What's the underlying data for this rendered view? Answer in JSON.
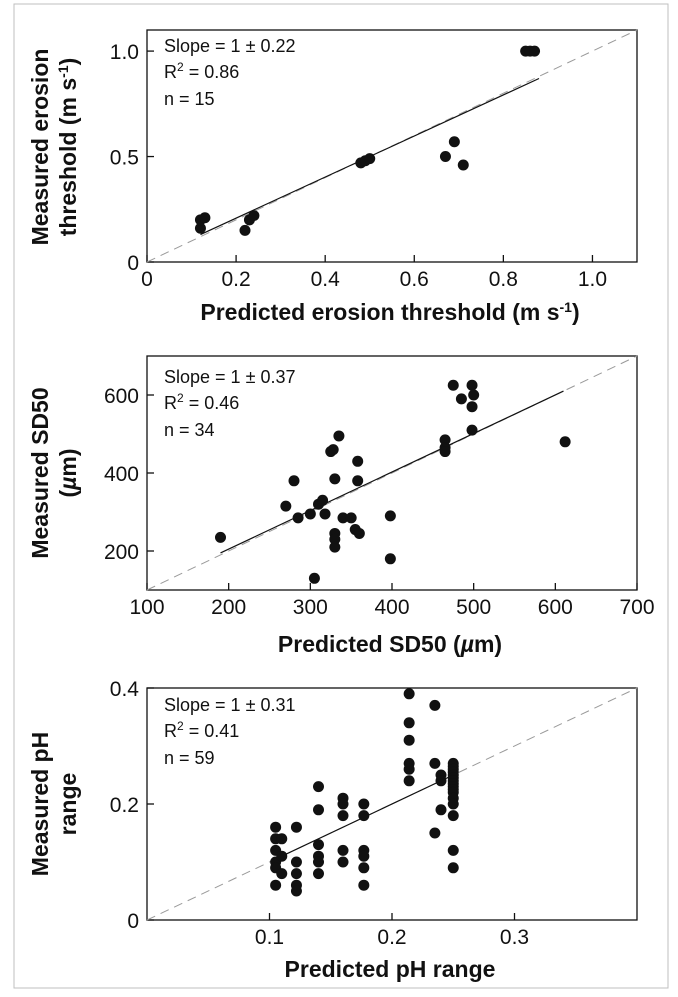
{
  "chart_data": [
    {
      "type": "scatter",
      "xlabel": "Predicted erosion threshold (m s-1)",
      "ylabel": "Measured erosion threshold (m s-1)",
      "xlim": [
        0,
        1.1
      ],
      "ylim": [
        0,
        1.1
      ],
      "x_ticks": [
        0,
        0.2,
        0.4,
        0.6,
        0.8,
        1.0
      ],
      "x_tick_labels": [
        "0",
        "0.2",
        "0.4",
        "0.6",
        "0.8",
        "1.0"
      ],
      "y_ticks": [
        0,
        0.5,
        1.0
      ],
      "y_tick_labels": [
        "0",
        "0.5",
        "1.0"
      ],
      "stats": {
        "slope": "Slope = 1 ± 0.22",
        "r2_prefix": "R",
        "r2_value": " = 0.86",
        "n": "n = 15"
      },
      "fit_line": [
        [
          0.12,
          0.13
        ],
        [
          0.88,
          0.87
        ]
      ],
      "identity_line": true,
      "points": [
        [
          0.12,
          0.16
        ],
        [
          0.12,
          0.2
        ],
        [
          0.13,
          0.21
        ],
        [
          0.22,
          0.15
        ],
        [
          0.23,
          0.2
        ],
        [
          0.24,
          0.22
        ],
        [
          0.48,
          0.47
        ],
        [
          0.49,
          0.48
        ],
        [
          0.5,
          0.49
        ],
        [
          0.67,
          0.5
        ],
        [
          0.69,
          0.57
        ],
        [
          0.71,
          0.46
        ],
        [
          0.85,
          1.0
        ],
        [
          0.86,
          1.0
        ],
        [
          0.87,
          1.0
        ]
      ]
    },
    {
      "type": "scatter",
      "xlabel": "Predicted SD50 (µm)",
      "ylabel": "Measured SD50 (µm)",
      "xlim": [
        100,
        700
      ],
      "ylim": [
        100,
        700
      ],
      "x_ticks": [
        100,
        200,
        300,
        400,
        500,
        600,
        700
      ],
      "x_tick_labels": [
        "100",
        "200",
        "300",
        "400",
        "500",
        "600",
        "700"
      ],
      "y_ticks": [
        200,
        400,
        600
      ],
      "y_tick_labels": [
        "200",
        "400",
        "600"
      ],
      "stats": {
        "slope": "Slope = 1 ± 0.37",
        "r2_prefix": "R",
        "r2_value": " = 0.46",
        "n": "n = 34"
      },
      "fit_line": [
        [
          190,
          195
        ],
        [
          610,
          610
        ]
      ],
      "identity_line": true,
      "points": [
        [
          190,
          235
        ],
        [
          270,
          315
        ],
        [
          280,
          380
        ],
        [
          285,
          285
        ],
        [
          300,
          295
        ],
        [
          305,
          130
        ],
        [
          310,
          320
        ],
        [
          315,
          330
        ],
        [
          318,
          295
        ],
        [
          325,
          455
        ],
        [
          328,
          460
        ],
        [
          330,
          385
        ],
        [
          330,
          245
        ],
        [
          330,
          230
        ],
        [
          330,
          210
        ],
        [
          335,
          495
        ],
        [
          340,
          285
        ],
        [
          350,
          285
        ],
        [
          355,
          255
        ],
        [
          358,
          430
        ],
        [
          358,
          380
        ],
        [
          360,
          245
        ],
        [
          398,
          290
        ],
        [
          398,
          180
        ],
        [
          465,
          485
        ],
        [
          465,
          465
        ],
        [
          465,
          455
        ],
        [
          475,
          625
        ],
        [
          485,
          590
        ],
        [
          498,
          625
        ],
        [
          498,
          570
        ],
        [
          498,
          510
        ],
        [
          500,
          600
        ],
        [
          612,
          480
        ]
      ]
    },
    {
      "type": "scatter",
      "xlabel": "Predicted pH range",
      "ylabel": "Measured pH range",
      "xlim": [
        0,
        0.4
      ],
      "ylim": [
        0,
        0.4
      ],
      "x_ticks": [
        0.1,
        0.2,
        0.3
      ],
      "x_tick_labels": [
        "0.1",
        "0.2",
        "0.3"
      ],
      "y_ticks": [
        0,
        0.2,
        0.4
      ],
      "y_tick_labels": [
        "0",
        "0.2",
        "0.4"
      ],
      "stats": {
        "slope": "Slope = 1 ± 0.31",
        "r2_prefix": "R",
        "r2_value": " = 0.41",
        "n": "n = 59"
      },
      "fit_line": [
        [
          0.105,
          0.105
        ],
        [
          0.25,
          0.25
        ]
      ],
      "identity_line": true,
      "points": [
        [
          0.105,
          0.16
        ],
        [
          0.105,
          0.14
        ],
        [
          0.105,
          0.12
        ],
        [
          0.105,
          0.1
        ],
        [
          0.105,
          0.09
        ],
        [
          0.105,
          0.06
        ],
        [
          0.11,
          0.11
        ],
        [
          0.11,
          0.14
        ],
        [
          0.11,
          0.08
        ],
        [
          0.122,
          0.16
        ],
        [
          0.122,
          0.1
        ],
        [
          0.122,
          0.08
        ],
        [
          0.122,
          0.06
        ],
        [
          0.122,
          0.05
        ],
        [
          0.14,
          0.23
        ],
        [
          0.14,
          0.19
        ],
        [
          0.14,
          0.13
        ],
        [
          0.14,
          0.11
        ],
        [
          0.14,
          0.1
        ],
        [
          0.14,
          0.08
        ],
        [
          0.16,
          0.21
        ],
        [
          0.16,
          0.2
        ],
        [
          0.16,
          0.18
        ],
        [
          0.16,
          0.1
        ],
        [
          0.16,
          0.12
        ],
        [
          0.177,
          0.2
        ],
        [
          0.177,
          0.18
        ],
        [
          0.177,
          0.12
        ],
        [
          0.177,
          0.11
        ],
        [
          0.177,
          0.09
        ],
        [
          0.177,
          0.06
        ],
        [
          0.214,
          0.39
        ],
        [
          0.214,
          0.34
        ],
        [
          0.214,
          0.31
        ],
        [
          0.214,
          0.27
        ],
        [
          0.214,
          0.26
        ],
        [
          0.214,
          0.24
        ],
        [
          0.235,
          0.37
        ],
        [
          0.235,
          0.27
        ],
        [
          0.235,
          0.15
        ],
        [
          0.24,
          0.25
        ],
        [
          0.24,
          0.19
        ],
        [
          0.24,
          0.24
        ],
        [
          0.25,
          0.27
        ],
        [
          0.25,
          0.265
        ],
        [
          0.25,
          0.26
        ],
        [
          0.25,
          0.255
        ],
        [
          0.25,
          0.25
        ],
        [
          0.25,
          0.245
        ],
        [
          0.25,
          0.24
        ],
        [
          0.25,
          0.235
        ],
        [
          0.25,
          0.23
        ],
        [
          0.25,
          0.225
        ],
        [
          0.25,
          0.22
        ],
        [
          0.25,
          0.21
        ],
        [
          0.25,
          0.2
        ],
        [
          0.25,
          0.18
        ],
        [
          0.25,
          0.12
        ],
        [
          0.25,
          0.09
        ]
      ]
    }
  ]
}
